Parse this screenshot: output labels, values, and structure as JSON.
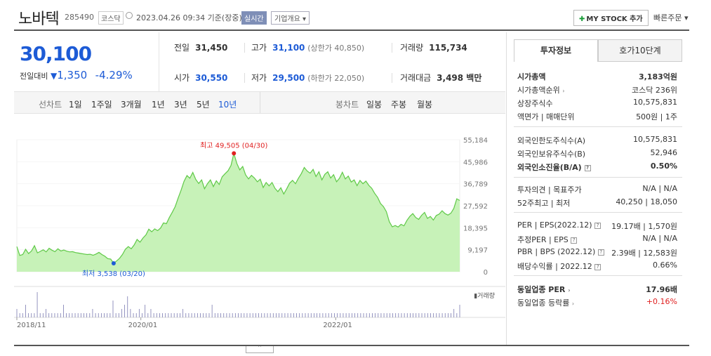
{
  "header": {
    "stock_name": "노바텍",
    "stock_code": "285490",
    "market_badge": "코스닥",
    "datetime": "2023.04.26 09:34 기준(장중)",
    "realtime_badge": "실시간",
    "company_overview": "기업개요 ▾",
    "my_stock_button": "MY STOCK 추가",
    "quick_order": "빠른주문 ▾"
  },
  "price": {
    "current": "30,100",
    "change_label": "전일대비",
    "change_arrow": "▼",
    "change_value": "1,350",
    "change_percent": "-4.29%",
    "color": "#1d5bd6"
  },
  "quote_table": {
    "prev_close_label": "전일",
    "prev_close": "31,450",
    "high_label": "고가",
    "high": "31,100",
    "upper_limit": "(상한가 40,850)",
    "volume_label": "거래량",
    "volume": "115,734",
    "open_label": "시가",
    "open": "30,550",
    "low_label": "저가",
    "low": "29,500",
    "lower_limit": "(하한가 22,050)",
    "turnover_label": "거래대금",
    "turnover": "3,498 백만"
  },
  "chart_tabs": {
    "line_chart_label": "선차트",
    "periods": [
      "1일",
      "1주일",
      "3개월",
      "1년",
      "3년",
      "5년",
      "10년"
    ],
    "selected_period": "10년",
    "candle_label": "봉차트",
    "candles": [
      "일봉",
      "주봉",
      "월봉"
    ]
  },
  "chart_data": {
    "type": "area",
    "y_ticks": [
      "55,184",
      "45,986",
      "36,789",
      "27,592",
      "18,395",
      "9,197",
      "0"
    ],
    "ylim": [
      0,
      55184
    ],
    "x_ticks": [
      "2018/11",
      "2020/01",
      "2022/01"
    ],
    "high_label": "최고 49,505 (04/30)",
    "low_label": "최저 3,538 (03/20)",
    "volume_legend": "거래량",
    "series": [
      {
        "values": [
          10500,
          6800,
          7200,
          9400,
          7600,
          8700,
          10900,
          7900,
          8500,
          9200,
          8300,
          9800,
          9000,
          8400,
          9600,
          8700,
          9100,
          8600,
          8300,
          8400,
          8000,
          7800,
          7600,
          7400,
          7200,
          7300,
          6900,
          7400,
          8100,
          7200,
          6500,
          5500,
          5300,
          3538,
          4500,
          5600,
          7200,
          9400,
          10500,
          9600,
          11200,
          13500,
          12400,
          14100,
          15400,
          17800,
          16700,
          17900,
          17200,
          18300,
          20400,
          20100,
          22700,
          24900,
          27300,
          30800,
          34100,
          37800,
          40200,
          39100,
          41500,
          38600,
          36900,
          38400,
          34700,
          36800,
          38400,
          35600,
          38000,
          36500,
          39700,
          41000,
          42200,
          44400,
          49505,
          45300,
          42600,
          44000,
          40500,
          38800,
          40300,
          39200,
          37600,
          38700,
          35200,
          37300,
          35900,
          37300,
          34900,
          33500,
          35100,
          32500,
          34700,
          37000,
          38200,
          36800,
          39100,
          41000,
          43600,
          42100,
          41200,
          42800,
          39800,
          41800,
          38400,
          40700,
          41800,
          39200,
          40600,
          37600,
          39100,
          41600,
          38800,
          40000,
          37500,
          38400,
          36000,
          38200,
          36800,
          37900,
          36100,
          34900,
          32800,
          31100,
          28500,
          27200,
          25100,
          20900,
          18800,
          19300,
          18700,
          19800,
          19200,
          21500,
          23200,
          24300,
          22700,
          21900,
          23600,
          24800,
          22300,
          23100,
          21600,
          23500,
          24100,
          25500,
          24300,
          23700,
          24500,
          26500,
          30500,
          29800
        ]
      }
    ],
    "volume_bars": [
      2,
      1,
      1,
      3,
      1,
      1,
      1,
      6,
      1,
      1,
      2,
      1,
      1,
      1,
      1,
      1,
      3,
      1,
      1,
      1,
      1,
      1,
      1,
      1,
      1,
      1,
      2,
      1,
      1,
      1,
      1,
      1,
      1,
      4,
      1,
      1,
      2,
      3,
      5,
      2,
      1,
      1,
      2,
      1,
      3,
      1,
      2,
      1,
      1,
      1,
      1,
      1,
      1,
      1,
      1,
      1,
      1,
      2,
      1,
      1,
      1,
      1,
      1,
      1,
      1,
      1,
      1,
      3,
      1,
      1,
      1,
      1,
      1,
      1,
      1,
      1,
      1,
      1,
      1,
      1,
      1,
      1,
      1,
      1,
      1,
      1,
      1,
      1,
      1,
      1,
      1,
      1,
      1,
      1,
      1,
      1,
      1,
      1,
      1,
      1,
      1,
      1,
      1,
      1,
      1,
      1,
      1,
      1,
      1,
      1,
      1,
      1,
      1,
      1,
      1,
      1,
      1,
      1,
      1,
      1,
      1,
      1,
      1,
      1,
      1,
      1,
      1,
      1,
      1,
      1,
      1,
      1,
      1,
      1,
      1,
      1,
      1,
      1,
      1,
      1,
      1,
      1,
      1,
      1,
      1,
      1,
      1,
      1,
      1,
      1,
      2,
      1,
      3
    ]
  },
  "side": {
    "tab_invest": "투자정보",
    "tab_hoga": "호가10단계",
    "market_cap_label": "시가총액",
    "market_cap": "3,183억원",
    "market_cap_rank_label": "시가총액순위",
    "market_cap_rank": "코스닥 236위",
    "shares_label": "상장주식수",
    "shares": "10,575,831",
    "par_label": "액면가 | 매매단위",
    "par": "500원 | 1주",
    "foreign_limit_label": "외국인한도주식수(A)",
    "foreign_limit": "10,575,831",
    "foreign_hold_label": "외국인보유주식수(B)",
    "foreign_hold": "52,946",
    "foreign_ratio_label": "외국인소진율(B/A)",
    "foreign_ratio": "0.50%",
    "opinion_label": "투자의견 | 목표주가",
    "opinion": "N/A | N/A",
    "week52_label": "52주최고 | 최저",
    "week52": "40,250 | 18,050",
    "per_label": "PER | EPS(2022.12)",
    "per": "19.17배 | 1,570원",
    "est_per_label": "추정PER | EPS",
    "est_per": "N/A | N/A",
    "pbr_label": "PBR | BPS (2022.12)",
    "pbr": "2.39배 | 12,583원",
    "div_label": "배당수익률 | 2022.12",
    "div": "0.66%",
    "ind_per_label": "동일업종 PER",
    "ind_per": "17.96배",
    "ind_rate_label": "동일업종 등락률",
    "ind_rate": "+0.16%"
  }
}
